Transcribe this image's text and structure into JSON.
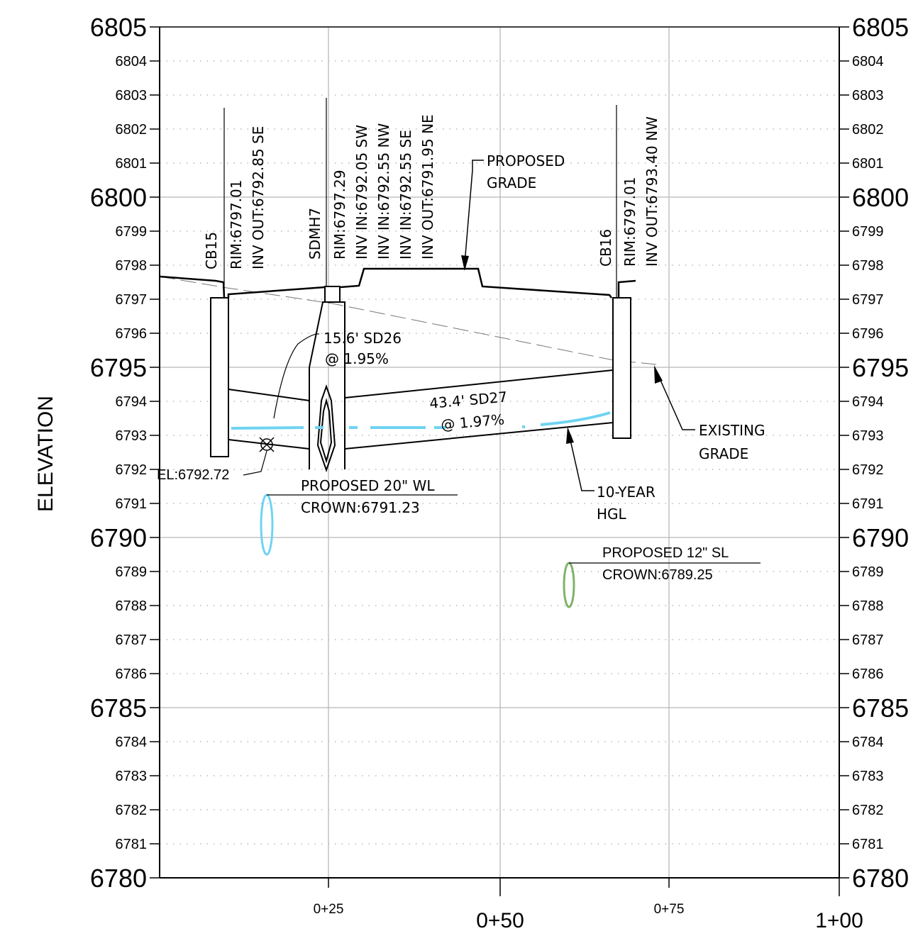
{
  "axis": {
    "y_title": "ELEVATION",
    "x_labels": [
      "0+25",
      "0+50",
      "0+75",
      "1+00"
    ],
    "major_y": [
      "6805",
      "6800",
      "6795",
      "6790",
      "6785",
      "6780"
    ],
    "minor_y": [
      "6804",
      "6803",
      "6802",
      "6801",
      "6799",
      "6798",
      "6797",
      "6796",
      "6794",
      "6793",
      "6792",
      "6791",
      "6789",
      "6788",
      "6787",
      "6786",
      "6784",
      "6783",
      "6782",
      "6781"
    ]
  },
  "structures": {
    "cb15": {
      "name": "CB15",
      "rim": "RIM:6797.01",
      "inv": "INV OUT:6792.85 SE"
    },
    "sdmh7": {
      "name": "SDMH7",
      "rim": "RIM:6797.29",
      "inv1": "INV IN:6792.05 SW",
      "inv2": "INV IN:6792.55 NW",
      "inv3": "INV IN:6792.55 SE",
      "inv4": "INV OUT:6791.95 NE"
    },
    "cb16": {
      "name": "CB16",
      "rim": "RIM:6797.01",
      "inv": "INV OUT:6793.40 NW"
    }
  },
  "pipes": {
    "sd26": {
      "line1": "15.6' SD26",
      "line2": "@ 1.95%"
    },
    "sd27": {
      "line1": "43.4' SD27",
      "line2": "@ 1.97%"
    }
  },
  "callouts": {
    "proposed_grade": {
      "line1": "PROPOSED",
      "line2": "GRADE"
    },
    "existing_grade": {
      "line1": "EXISTING",
      "line2": "GRADE"
    },
    "hgl": {
      "line1": "10-YEAR",
      "line2": "HGL"
    },
    "el": "EL:6792.72",
    "wl": {
      "line1": "PROPOSED 20\" WL",
      "line2": "CROWN:6791.23"
    },
    "sl": {
      "line1": "PROPOSED 12\" SL",
      "line2": "CROWN:6789.25"
    }
  },
  "colors": {
    "water_line": "#6fd3f2",
    "sewer_line": "#7fb26a",
    "grid": "#b8b8b8"
  }
}
